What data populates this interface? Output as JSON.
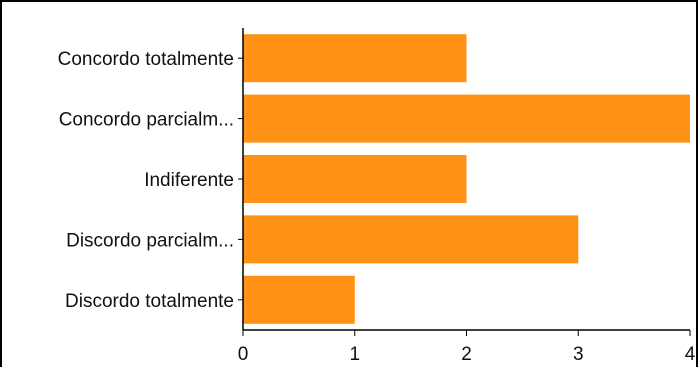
{
  "chart_data": {
    "type": "bar",
    "orientation": "horizontal",
    "categories": [
      "Concordo totalmente",
      "Concordo parcialm...",
      "Indiferente",
      "Discordo parcialm...",
      "Discordo totalmente"
    ],
    "values": [
      2,
      4,
      2,
      3,
      1
    ],
    "xticks": [
      0,
      1,
      2,
      3,
      4
    ],
    "xlim": [
      0,
      4
    ],
    "bar_color": "#ff9214",
    "axis_color": "#000000",
    "grid": false,
    "legend": "none",
    "title": "",
    "xlabel": "",
    "ylabel": ""
  }
}
